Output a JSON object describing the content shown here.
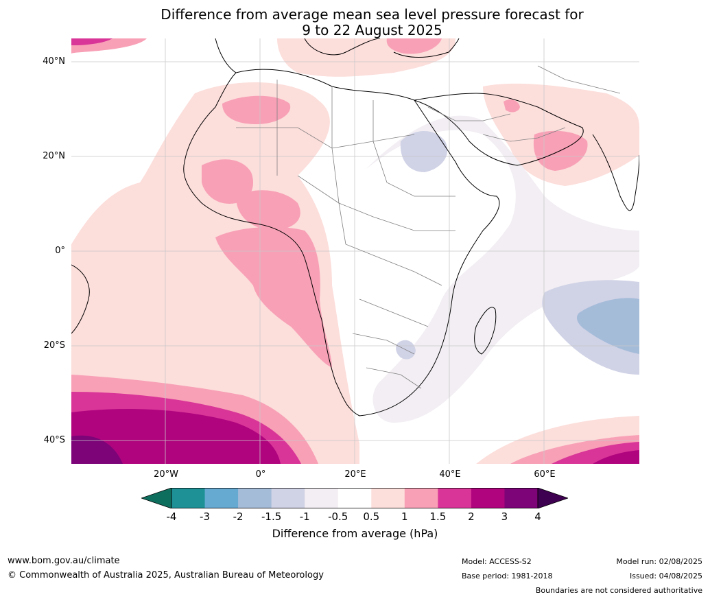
{
  "title_line1": "Difference from average mean sea level pressure forecast for",
  "title_line2": "9 to 22 August 2025",
  "lat_labels": [
    "40°N",
    "20°N",
    "0°",
    "20°S",
    "40°S"
  ],
  "lon_labels": [
    "20°W",
    "0°",
    "20°E",
    "40°E",
    "60°E"
  ],
  "colorbar": {
    "label": "Difference from average (hPa)",
    "ticks": [
      "-4",
      "-3",
      "-2",
      "-1.5",
      "-1",
      "-0.5",
      "0.5",
      "1",
      "1.5",
      "2",
      "3",
      "4"
    ],
    "colors": [
      "#0e6e5e",
      "#1e9196",
      "#66a9d1",
      "#a5bcd9",
      "#d0d2e6",
      "#f2eef3",
      "#ffffff",
      "#fcdedb",
      "#f8a0b6",
      "#d93598",
      "#b0047e",
      "#7c0478",
      "#3e0050"
    ]
  },
  "footer": {
    "website": "www.bom.gov.au/climate",
    "copyright": "© Commonwealth of Australia 2025, Australian Bureau of Meteorology",
    "model": "Model: ACCESS-S2",
    "base_period": "Base period: 1981-2018",
    "model_run": "Model run: 02/08/2025",
    "issued": "Issued: 04/08/2025",
    "disclaimer": "Boundaries are not considered authoritative"
  }
}
